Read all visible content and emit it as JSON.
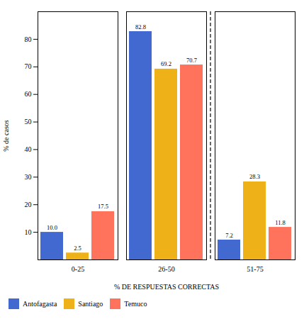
{
  "chart_data": {
    "type": "bar",
    "categories": [
      "0-25",
      "26-50",
      "51-75"
    ],
    "series": [
      {
        "name": "Antofagasta",
        "values": [
          10.0,
          82.8,
          7.2
        ],
        "value_labels": [
          "10.0",
          "82.8",
          "7.2"
        ]
      },
      {
        "name": "Santiago",
        "values": [
          2.5,
          69.2,
          28.3
        ],
        "value_labels": [
          "2.5",
          "69.2",
          "28.3"
        ]
      },
      {
        "name": "Temuco",
        "values": [
          17.5,
          70.7,
          11.8
        ],
        "value_labels": [
          "17.5",
          "70.7",
          "11.8"
        ]
      }
    ],
    "xlabel": "% DE RESPUESTAS CORRECTAS",
    "ylabel": "% de casos",
    "ylim": [
      0,
      90
    ],
    "yticks": [
      10,
      20,
      30,
      40,
      50,
      60,
      70,
      80
    ],
    "data_labels": true,
    "legend": "lower left"
  }
}
